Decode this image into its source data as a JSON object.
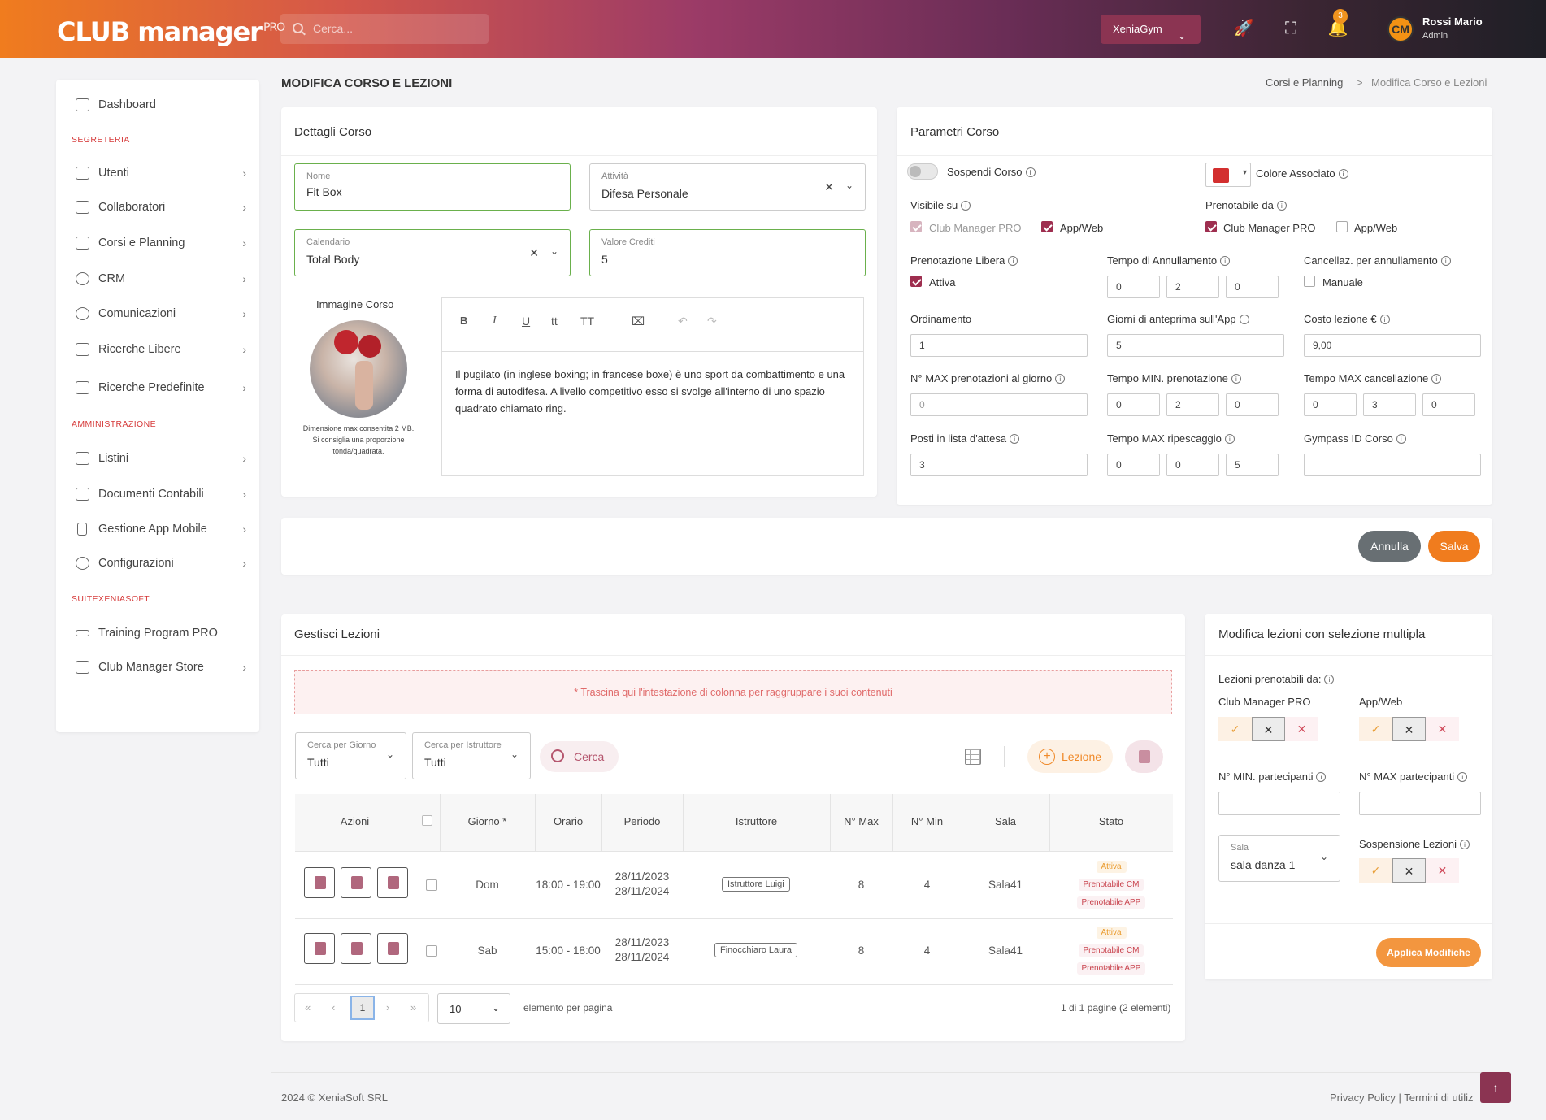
{
  "header": {
    "logo": "CLUB manager",
    "logo_pro": "PRO",
    "search_placeholder": "Cerca...",
    "gym": "XeniaGym",
    "notif_count": "3",
    "avatar_initials": "CM",
    "user_name": "Rossi Mario",
    "user_role": "Admin"
  },
  "sidebar": {
    "dashboard": "Dashboard",
    "sec1": "SEGRETERIA",
    "items1": [
      "Utenti",
      "Collaboratori",
      "Corsi e Planning",
      "CRM",
      "Comunicazioni",
      "Ricerche Libere",
      "Ricerche Predefinite"
    ],
    "sec2": "AMMINISTRAZIONE",
    "items2": [
      "Listini",
      "Documenti Contabili",
      "Gestione App Mobile",
      "Configurazioni"
    ],
    "sec3": "SUITEXENIASOFT",
    "items3": [
      "Training Program PRO",
      "Club Manager Store"
    ]
  },
  "page": {
    "title": "MODIFICA CORSO E LEZIONI",
    "bc1": "Corsi e Planning",
    "bc_sep": ">",
    "bc2": "Modifica Corso e Lezioni"
  },
  "dettagli": {
    "title": "Dettagli Corso",
    "nome_label": "Nome",
    "nome_value": "Fit Box",
    "attivita_label": "Attività",
    "attivita_value": "Difesa Personale",
    "calendario_label": "Calendario",
    "calendario_value": "Total Body",
    "crediti_label": "Valore Crediti",
    "crediti_value": "5",
    "img_title": "Immagine Corso",
    "img_note1": "Dimensione max consentita 2 MB.",
    "img_note2": "Si consiglia una proporzione",
    "img_note3": "tonda/quadrata.",
    "editor_text": "Il pugilato (in inglese boxing; in francese boxe) è uno sport da combattimento e una forma di autodifesa. A livello competitivo esso si svolge all'interno di uno spazio quadrato chiamato ring.",
    "toolbar": {
      "b": "B",
      "i": "I",
      "u": "U",
      "t1": "tt",
      "t2": "TT",
      "clear": "⌧",
      "undo": "↶",
      "redo": "↷"
    }
  },
  "parametri": {
    "title": "Parametri Corso",
    "sospendi": "Sospendi Corso",
    "colore": "Colore Associato",
    "colore_value": "#d32f2f",
    "visibile_su": "Visibile su",
    "cmpro": "Club Manager PRO",
    "appweb": "App/Web",
    "prenotabile_da": "Prenotabile da",
    "pren_libera": "Prenotazione Libera",
    "attiva": "Attiva",
    "tempo_annull": "Tempo di Annullamento",
    "tempo_annull_vals": [
      "0",
      "2",
      "0"
    ],
    "cancellaz": "Cancellaz. per annullamento",
    "manuale": "Manuale",
    "ordinamento": "Ordinamento",
    "ordinamento_val": "1",
    "giorni_anteprima": "Giorni di anteprima sull'App",
    "giorni_anteprima_val": "5",
    "costo": "Costo lezione €",
    "costo_val": "9,00",
    "max_pren": "N° MAX prenotazioni al giorno",
    "max_pren_val": "0",
    "tempo_min": "Tempo MIN. prenotazione",
    "tempo_min_vals": [
      "0",
      "2",
      "0"
    ],
    "tempo_max_canc": "Tempo MAX cancellazione",
    "tempo_max_canc_vals": [
      "0",
      "3",
      "0"
    ],
    "posti_attesa": "Posti in lista d'attesa",
    "posti_attesa_val": "3",
    "tempo_max_rip": "Tempo MAX ripescaggio",
    "tempo_max_rip_vals": [
      "0",
      "0",
      "5"
    ],
    "gympass": "Gympass ID Corso",
    "gympass_val": ""
  },
  "actions": {
    "annulla": "Annulla",
    "salva": "Salva"
  },
  "lezioni": {
    "title": "Gestisci Lezioni",
    "group_hint": "* Trascina qui l'intestazione di colonna per raggruppare i suoi contenuti",
    "filtro_giorno_label": "Cerca per Giorno",
    "filtro_giorno_val": "Tutti",
    "filtro_istr_label": "Cerca per Istruttore",
    "filtro_istr_val": "Tutti",
    "cerca": "Cerca",
    "lezione": "Lezione",
    "columns": [
      "Azioni",
      "",
      "Giorno *",
      "Orario",
      "Periodo",
      "Istruttore",
      "N° Max",
      "N° Min",
      "Sala",
      "Stato"
    ],
    "rows": [
      {
        "giorno": "Dom",
        "orario": "18:00 - 19:00",
        "periodo1": "28/11/2023",
        "periodo2": "28/11/2024",
        "istruttore": "Istruttore Luigi",
        "max": "8",
        "min": "4",
        "sala": "Sala41",
        "stato": [
          "Attiva",
          "Prenotabile CM",
          "Prenotabile APP"
        ]
      },
      {
        "giorno": "Sab",
        "orario": "15:00 - 18:00",
        "periodo1": "28/11/2023",
        "periodo2": "28/11/2024",
        "istruttore": "Finocchiaro Laura",
        "max": "8",
        "min": "4",
        "sala": "Sala41",
        "stato": [
          "Attiva",
          "Prenotabile CM",
          "Prenotabile APP"
        ]
      }
    ],
    "pager": {
      "first": "«",
      "prev": "‹",
      "page": "1",
      "next": "›",
      "last": "»",
      "per_page": "10",
      "per_page_label": "elemento per pagina",
      "summary": "1 di 1 pagine (2 elementi)"
    }
  },
  "multi": {
    "title": "Modifica lezioni con selezione multipla",
    "pren_da": "Lezioni prenotabili da:",
    "cmpro": "Club Manager PRO",
    "appweb": "App/Web",
    "min_part": "N° MIN. partecipanti",
    "max_part": "N° MAX partecipanti",
    "sala_label": "Sala",
    "sala_val": "sala danza 1",
    "sospensione": "Sospensione Lezioni",
    "applica": "Applica Modifiche",
    "check": "✓",
    "clear": "✕",
    "cross": "✕"
  },
  "footer": {
    "copy": "2024 © XeniaSoft SRL",
    "links": "Privacy Policy | Termini di utiliz",
    "top": "↑"
  }
}
